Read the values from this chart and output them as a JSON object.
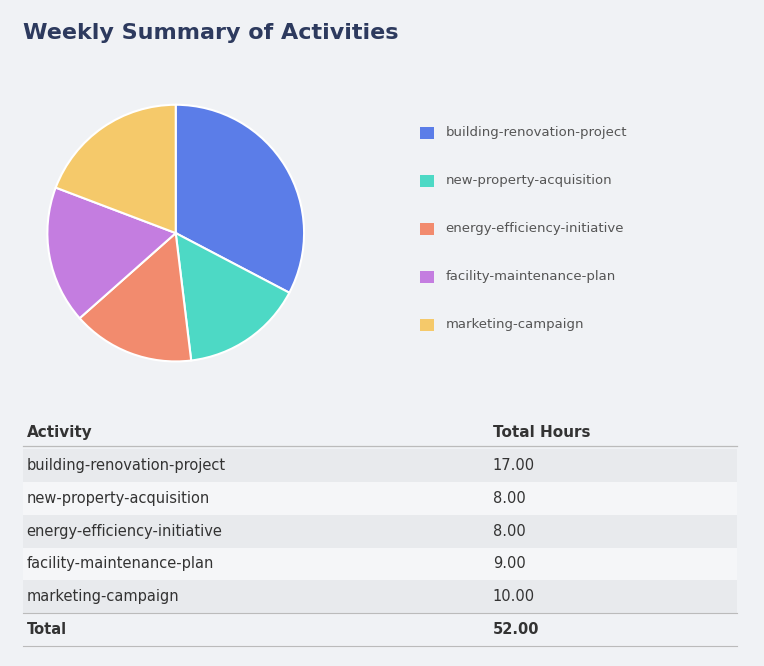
{
  "title": "Weekly Summary of Activities",
  "title_color": "#2d3a5e",
  "background_color": "#f0f2f5",
  "pie_data": [
    17.0,
    8.0,
    8.0,
    9.0,
    10.0
  ],
  "pie_labels": [
    "building-renovation-project",
    "new-property-acquisition",
    "energy-efficiency-initiative",
    "facility-maintenance-plan",
    "marketing-campaign"
  ],
  "pie_colors": [
    "#5b7de8",
    "#4dd9c5",
    "#f28b6e",
    "#c47de0",
    "#f5c96a"
  ],
  "table_headers": [
    "Activity",
    "Total Hours"
  ],
  "table_rows": [
    [
      "building-renovation-project",
      "17.00"
    ],
    [
      "new-property-acquisition",
      "8.00"
    ],
    [
      "energy-efficiency-initiative",
      "8.00"
    ],
    [
      "facility-maintenance-plan",
      "9.00"
    ],
    [
      "marketing-campaign",
      "10.00"
    ]
  ],
  "table_total": [
    "Total",
    "52.00"
  ],
  "row_colors": [
    "#e8eaed",
    "#f5f6f8",
    "#e8eaed",
    "#f5f6f8",
    "#e8eaed"
  ],
  "text_color": "#333333",
  "legend_text_color": "#555555",
  "title_fontsize": 16,
  "table_fontsize": 10.5,
  "header_fontsize": 11,
  "legend_fontsize": 9.5
}
